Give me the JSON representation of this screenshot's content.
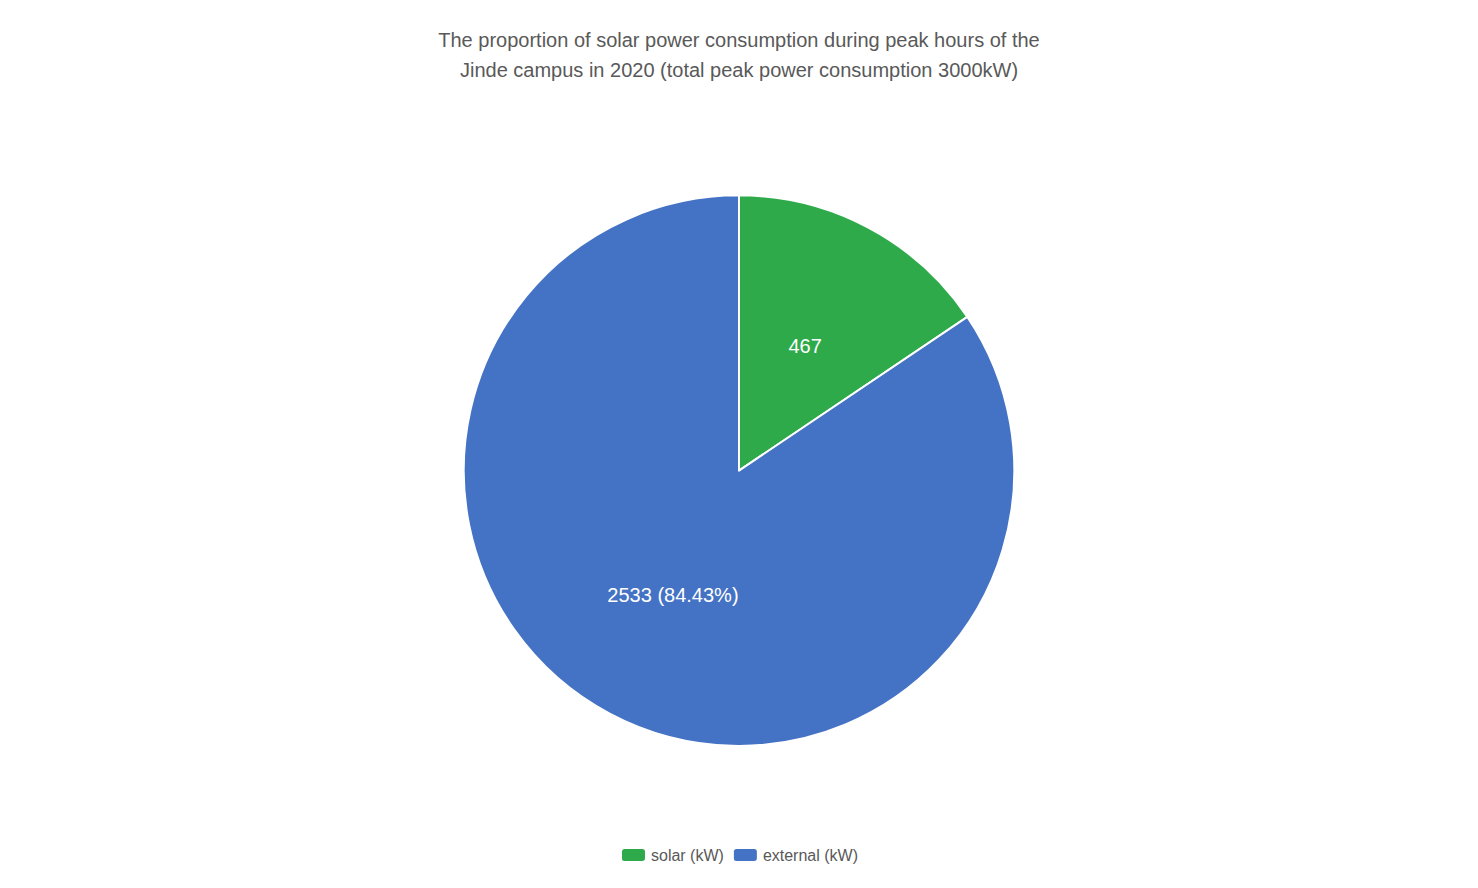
{
  "chart_data": {
    "type": "pie",
    "title": "The proportion of solar power consumption during peak hours of the\nJinde campus in 2020 (total peak power consumption 3000kW)",
    "categories": [
      "solar (kW)",
      "external (kW)"
    ],
    "values": [
      467,
      2533
    ],
    "value_labels": [
      "467",
      "2533 (84.43%)"
    ],
    "colors": [
      "#2EAA4A",
      "#4472C4"
    ],
    "data_labels": true,
    "legend": "bottom"
  }
}
